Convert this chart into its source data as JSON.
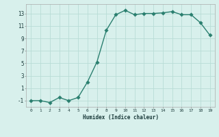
{
  "x": [
    0,
    1,
    2,
    3,
    4,
    5,
    6,
    7,
    8,
    9,
    10,
    11,
    12,
    13,
    14,
    15,
    16,
    17,
    18,
    19
  ],
  "y": [
    -1,
    -1,
    -1.3,
    -0.5,
    -1,
    -0.5,
    2,
    5.2,
    10.3,
    12.8,
    13.5,
    12.8,
    13.0,
    13.0,
    13.1,
    13.3,
    12.8,
    12.8,
    11.5,
    9.5
  ],
  "line_color": "#2a7f6f",
  "marker_color": "#2a7f6f",
  "bg_color": "#d8f0ec",
  "grid_color": "#b8dcd6",
  "xlabel": "Humidex (Indice chaleur)",
  "xlim": [
    -0.5,
    19.5
  ],
  "ylim": [
    -2,
    14.5
  ],
  "yticks": [
    -1,
    1,
    3,
    5,
    7,
    9,
    11,
    13
  ],
  "xticks": [
    0,
    1,
    2,
    3,
    4,
    5,
    6,
    7,
    8,
    9,
    10,
    11,
    12,
    13,
    14,
    15,
    16,
    17,
    18,
    19
  ],
  "line_width": 1.0,
  "marker_size": 2.8
}
